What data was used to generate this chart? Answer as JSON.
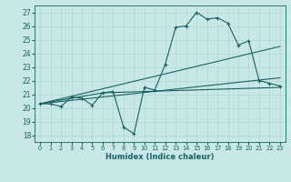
{
  "xlabel": "Humidex (Indice chaleur)",
  "xlim": [
    -0.5,
    23.5
  ],
  "ylim": [
    17.5,
    27.5
  ],
  "yticks": [
    18,
    19,
    20,
    21,
    22,
    23,
    24,
    25,
    26,
    27
  ],
  "xticks": [
    0,
    1,
    2,
    3,
    4,
    5,
    6,
    7,
    8,
    9,
    10,
    11,
    12,
    13,
    14,
    15,
    16,
    17,
    18,
    19,
    20,
    21,
    22,
    23
  ],
  "bg_color": "#c8e8e8",
  "grid_color": "#b0d8d0",
  "line_color": "#1a6060",
  "lines": [
    {
      "x": [
        0,
        1,
        2,
        3,
        4,
        5,
        6,
        7,
        8,
        9,
        10,
        11,
        12,
        13,
        14,
        15,
        16,
        17,
        18,
        19,
        20,
        21,
        22,
        23
      ],
      "y": [
        20.3,
        20.3,
        20.1,
        20.8,
        20.7,
        20.2,
        21.1,
        21.2,
        18.6,
        18.1,
        21.5,
        21.3,
        23.2,
        25.9,
        26.0,
        27.0,
        26.5,
        26.6,
        26.2,
        24.6,
        24.9,
        22.0,
        21.8,
        21.6
      ],
      "marker": true
    },
    {
      "x": [
        0,
        23
      ],
      "y": [
        20.3,
        24.5
      ],
      "marker": false
    },
    {
      "x": [
        0,
        23
      ],
      "y": [
        20.3,
        22.2
      ],
      "marker": false
    },
    {
      "x": [
        0,
        6,
        23
      ],
      "y": [
        20.3,
        21.1,
        21.5
      ],
      "marker": false
    }
  ]
}
